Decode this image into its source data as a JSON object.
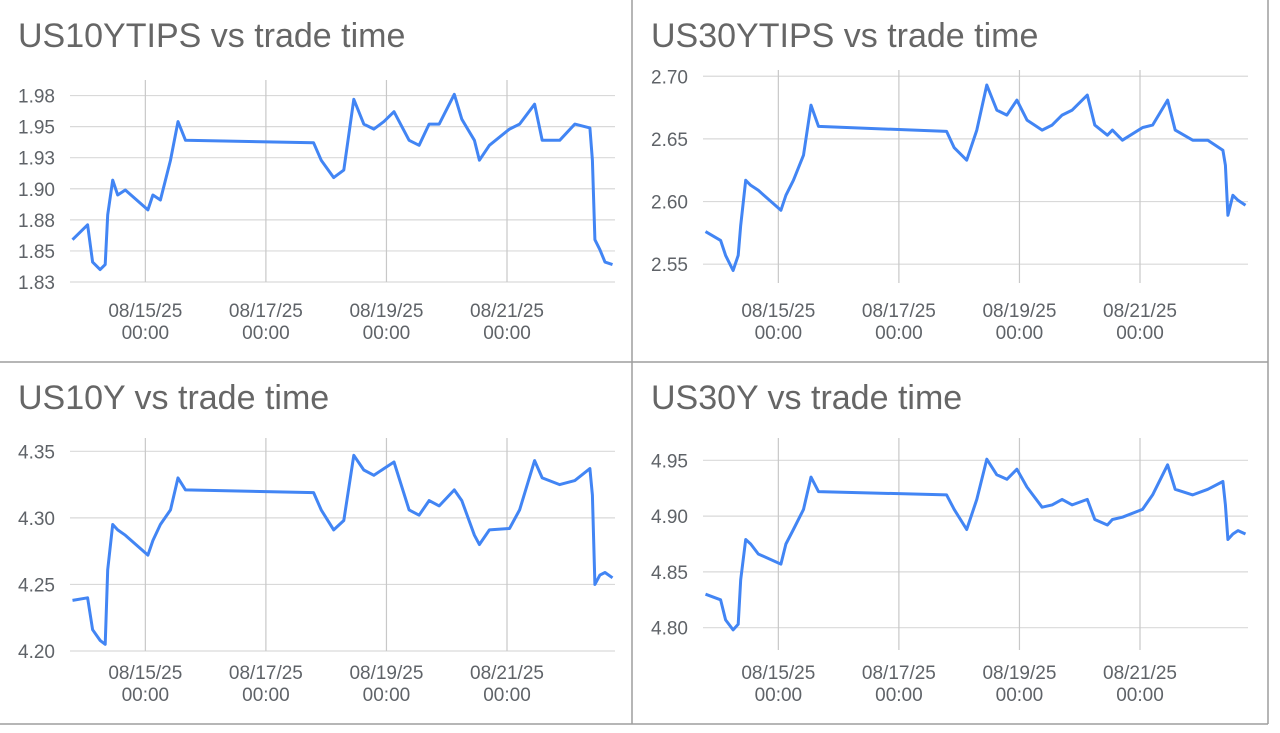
{
  "chart_data": [
    {
      "type": "line",
      "title": "US10YTIPS vs trade time",
      "color": "#4285f4",
      "grid": true,
      "x": [
        "08/13/25 19:00",
        "08/14/25 01:00",
        "08/14/25 03:00",
        "08/14/25 06:00",
        "08/14/25 08:00",
        "08/14/25 09:00",
        "08/14/25 11:00",
        "08/14/25 13:00",
        "08/14/25 16:00",
        "08/15/25 01:00",
        "08/15/25 03:00",
        "08/15/25 06:00",
        "08/15/25 10:00",
        "08/15/25 13:00",
        "08/15/25 16:00",
        "08/17/25 19:00",
        "08/17/25 22:00",
        "08/18/25 03:00",
        "08/18/25 07:00",
        "08/18/25 11:00",
        "08/18/25 15:00",
        "08/18/25 19:00",
        "08/18/25 23:00",
        "08/19/25 03:00",
        "08/19/25 09:00",
        "08/19/25 13:00",
        "08/19/25 17:00",
        "08/19/25 21:00",
        "08/20/25 03:00",
        "08/20/25 06:00",
        "08/20/25 11:00",
        "08/20/25 13:00",
        "08/20/25 17:00",
        "08/21/25 01:00",
        "08/21/25 05:00",
        "08/21/25 11:00",
        "08/21/25 14:00",
        "08/21/25 21:00",
        "08/22/25 03:00",
        "08/22/25 09:00",
        "08/22/25 10:00",
        "08/22/25 11:00",
        "08/22/25 13:00",
        "08/22/25 15:00",
        "08/22/25 18:00"
      ],
      "values": [
        1.859,
        1.871,
        1.841,
        1.835,
        1.839,
        1.879,
        1.907,
        1.895,
        1.899,
        1.883,
        1.895,
        1.891,
        1.923,
        1.954,
        1.939,
        1.937,
        1.923,
        1.909,
        1.915,
        1.972,
        1.952,
        1.948,
        1.954,
        1.962,
        1.939,
        1.935,
        1.952,
        1.952,
        1.976,
        1.956,
        1.939,
        1.923,
        1.935,
        1.948,
        1.952,
        1.968,
        1.939,
        1.939,
        1.952,
        1.949,
        1.923,
        1.859,
        1.851,
        1.841,
        1.839
      ],
      "xlim": [
        "08/13/25 18:00",
        "08/22/25 19:00"
      ],
      "ylim": [
        1.825,
        1.9875
      ],
      "xticks": [
        "08/15/25 00:00",
        "08/17/25 00:00",
        "08/19/25 00:00",
        "08/21/25 00:00"
      ],
      "yticks": [
        {
          "value": 1.825,
          "label": "1.83"
        },
        1.85,
        {
          "value": 1.875,
          "label": "1.88"
        },
        {
          "value": 1.9,
          "label": "1.90"
        },
        {
          "value": 1.925,
          "label": "1.93"
        },
        1.95,
        {
          "value": 1.975,
          "label": "1.98"
        }
      ]
    },
    {
      "type": "line",
      "title": "US30YTIPS vs trade time",
      "color": "#4285f4",
      "grid": true,
      "x": [
        "08/13/25 19:00",
        "08/14/25 01:00",
        "08/14/25 03:00",
        "08/14/25 06:00",
        "08/14/25 08:00",
        "08/14/25 09:00",
        "08/14/25 11:00",
        "08/14/25 13:00",
        "08/14/25 16:00",
        "08/15/25 01:00",
        "08/15/25 03:00",
        "08/15/25 06:00",
        "08/15/25 10:00",
        "08/15/25 13:00",
        "08/15/25 16:00",
        "08/17/25 19:00",
        "08/17/25 22:00",
        "08/18/25 03:00",
        "08/18/25 07:00",
        "08/18/25 11:00",
        "08/18/25 15:00",
        "08/18/25 19:00",
        "08/18/25 23:00",
        "08/19/25 03:00",
        "08/19/25 09:00",
        "08/19/25 13:00",
        "08/19/25 17:00",
        "08/19/25 21:00",
        "08/20/25 03:00",
        "08/20/25 06:00",
        "08/20/25 11:00",
        "08/20/25 13:00",
        "08/20/25 17:00",
        "08/21/25 01:00",
        "08/21/25 05:00",
        "08/21/25 11:00",
        "08/21/25 14:00",
        "08/21/25 21:00",
        "08/22/25 03:00",
        "08/22/25 09:00",
        "08/22/25 10:00",
        "08/22/25 11:00",
        "08/22/25 13:00",
        "08/22/25 15:00",
        "08/22/25 18:00"
      ],
      "values": [
        2.576,
        2.569,
        2.557,
        2.545,
        2.557,
        2.581,
        2.617,
        2.613,
        2.609,
        2.593,
        2.605,
        2.617,
        2.637,
        2.677,
        2.66,
        2.656,
        2.643,
        2.633,
        2.657,
        2.693,
        2.673,
        2.669,
        2.681,
        2.665,
        2.657,
        2.661,
        2.669,
        2.673,
        2.685,
        2.661,
        2.653,
        2.657,
        2.649,
        2.659,
        2.661,
        2.681,
        2.657,
        2.649,
        2.649,
        2.641,
        2.629,
        2.589,
        2.605,
        2.601,
        2.597
      ],
      "xlim": [
        "08/13/25 18:00",
        "08/22/25 19:00"
      ],
      "ylim": [
        2.535,
        2.705
      ],
      "xticks": [
        "08/15/25 00:00",
        "08/17/25 00:00",
        "08/19/25 00:00",
        "08/21/25 00:00"
      ],
      "yticks": [
        2.55,
        {
          "value": 2.6,
          "label": "2.60"
        },
        2.65,
        {
          "value": 2.7,
          "label": "2.70"
        }
      ]
    },
    {
      "type": "line",
      "title": "US10Y vs trade time",
      "color": "#4285f4",
      "grid": true,
      "x": [
        "08/13/25 19:00",
        "08/14/25 01:00",
        "08/14/25 03:00",
        "08/14/25 06:00",
        "08/14/25 08:00",
        "08/14/25 09:00",
        "08/14/25 11:00",
        "08/14/25 13:00",
        "08/14/25 16:00",
        "08/15/25 01:00",
        "08/15/25 03:00",
        "08/15/25 06:00",
        "08/15/25 10:00",
        "08/15/25 13:00",
        "08/15/25 16:00",
        "08/17/25 19:00",
        "08/17/25 22:00",
        "08/18/25 03:00",
        "08/18/25 07:00",
        "08/18/25 11:00",
        "08/18/25 15:00",
        "08/18/25 19:00",
        "08/18/25 23:00",
        "08/19/25 03:00",
        "08/19/25 09:00",
        "08/19/25 13:00",
        "08/19/25 17:00",
        "08/19/25 21:00",
        "08/20/25 03:00",
        "08/20/25 06:00",
        "08/20/25 11:00",
        "08/20/25 13:00",
        "08/20/25 17:00",
        "08/21/25 01:00",
        "08/21/25 05:00",
        "08/21/25 11:00",
        "08/21/25 14:00",
        "08/21/25 21:00",
        "08/22/25 03:00",
        "08/22/25 09:00",
        "08/22/25 10:00",
        "08/22/25 11:00",
        "08/22/25 13:00",
        "08/22/25 15:00",
        "08/22/25 18:00"
      ],
      "values": [
        4.238,
        4.24,
        4.216,
        4.208,
        4.205,
        4.261,
        4.295,
        4.291,
        4.287,
        4.272,
        4.283,
        4.295,
        4.306,
        4.33,
        4.321,
        4.319,
        4.306,
        4.291,
        4.298,
        4.347,
        4.336,
        4.332,
        4.337,
        4.342,
        4.306,
        4.302,
        4.313,
        4.309,
        4.321,
        4.313,
        4.287,
        4.28,
        4.291,
        4.292,
        4.306,
        4.343,
        4.33,
        4.325,
        4.328,
        4.337,
        4.317,
        4.25,
        4.257,
        4.259,
        4.255
      ],
      "xlim": [
        "08/13/25 18:00",
        "08/22/25 19:00"
      ],
      "ylim": [
        4.2,
        4.36
      ],
      "xticks": [
        "08/15/25 00:00",
        "08/17/25 00:00",
        "08/19/25 00:00",
        "08/21/25 00:00"
      ],
      "yticks": [
        {
          "value": 4.2,
          "label": "4.20"
        },
        4.25,
        {
          "value": 4.3,
          "label": "4.30"
        },
        4.35
      ]
    },
    {
      "type": "line",
      "title": "US30Y vs trade time",
      "color": "#4285f4",
      "grid": true,
      "x": [
        "08/13/25 19:00",
        "08/14/25 01:00",
        "08/14/25 03:00",
        "08/14/25 06:00",
        "08/14/25 08:00",
        "08/14/25 09:00",
        "08/14/25 11:00",
        "08/14/25 13:00",
        "08/14/25 16:00",
        "08/15/25 01:00",
        "08/15/25 03:00",
        "08/15/25 06:00",
        "08/15/25 10:00",
        "08/15/25 13:00",
        "08/15/25 16:00",
        "08/17/25 19:00",
        "08/17/25 22:00",
        "08/18/25 03:00",
        "08/18/25 07:00",
        "08/18/25 11:00",
        "08/18/25 15:00",
        "08/18/25 19:00",
        "08/18/25 23:00",
        "08/19/25 03:00",
        "08/19/25 09:00",
        "08/19/25 13:00",
        "08/19/25 17:00",
        "08/19/25 21:00",
        "08/20/25 03:00",
        "08/20/25 06:00",
        "08/20/25 11:00",
        "08/20/25 13:00",
        "08/20/25 17:00",
        "08/21/25 01:00",
        "08/21/25 05:00",
        "08/21/25 11:00",
        "08/21/25 14:00",
        "08/21/25 21:00",
        "08/22/25 03:00",
        "08/22/25 09:00",
        "08/22/25 10:00",
        "08/22/25 11:00",
        "08/22/25 13:00",
        "08/22/25 15:00",
        "08/22/25 18:00"
      ],
      "values": [
        4.83,
        4.825,
        4.807,
        4.798,
        4.803,
        4.843,
        4.879,
        4.875,
        4.866,
        4.857,
        4.875,
        4.888,
        4.906,
        4.935,
        4.922,
        4.919,
        4.906,
        4.888,
        4.915,
        4.951,
        4.937,
        4.933,
        4.942,
        4.926,
        4.908,
        4.91,
        4.915,
        4.91,
        4.915,
        4.897,
        4.892,
        4.897,
        4.899,
        4.906,
        4.919,
        4.946,
        4.924,
        4.919,
        4.924,
        4.931,
        4.91,
        4.879,
        4.884,
        4.887,
        4.884
      ],
      "xlim": [
        "08/13/25 18:00",
        "08/22/25 19:00"
      ],
      "ylim": [
        4.78,
        4.97
      ],
      "xticks": [
        "08/15/25 00:00",
        "08/17/25 00:00",
        "08/19/25 00:00",
        "08/21/25 00:00"
      ],
      "yticks": [
        {
          "value": 4.8,
          "label": "4.80"
        },
        4.85,
        {
          "value": 4.9,
          "label": "4.90"
        },
        4.95
      ]
    }
  ]
}
